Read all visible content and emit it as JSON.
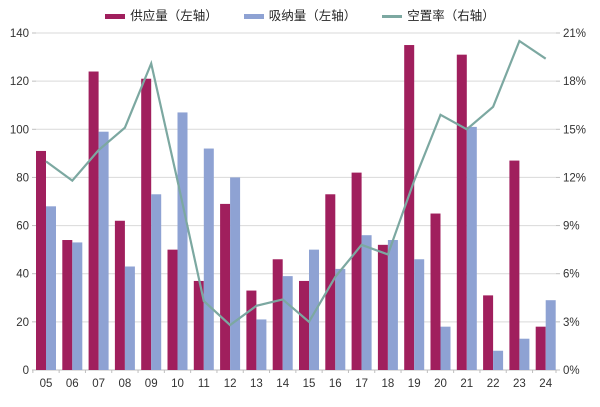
{
  "colors": {
    "supply_bar": "#A01F5D",
    "absorption_bar": "#8EA2D3",
    "vacancy_line": "#7CA8A1",
    "gridline": "#D9D9D9",
    "axis_line": "#BFBFBF",
    "tick_mark": "#BFBFBF",
    "text": "#333333",
    "background": "#FFFFFF"
  },
  "chart_data": {
    "type": "bar",
    "subtype": "grouped-bars-with-line-overlay",
    "title": "",
    "xlabel": "",
    "ylabel": "",
    "grid": true,
    "legend_position": "top-center",
    "categories": [
      "05",
      "06",
      "07",
      "08",
      "09",
      "10",
      "11",
      "12",
      "13",
      "14",
      "15",
      "16",
      "17",
      "18",
      "19",
      "20",
      "21",
      "22",
      "23",
      "24"
    ],
    "left_axis": {
      "min": 0,
      "max": 140,
      "step": 20,
      "tick_labels": [
        "0",
        "20",
        "40",
        "60",
        "80",
        "100",
        "120",
        "140"
      ]
    },
    "right_axis": {
      "min": 0,
      "max": 21,
      "step": 3,
      "tick_labels": [
        "0%",
        "3%",
        "6%",
        "9%",
        "12%",
        "15%",
        "18%",
        "21%"
      ]
    },
    "series": [
      {
        "name": "供应量（左轴）",
        "type": "bar",
        "axis": "left",
        "color_key": "supply_bar",
        "values": [
          91,
          54,
          124,
          62,
          121,
          50,
          37,
          69,
          33,
          46,
          37,
          73,
          82,
          52,
          135,
          65,
          131,
          31,
          87,
          18
        ]
      },
      {
        "name": "吸纳量（左轴）",
        "type": "bar",
        "axis": "left",
        "color_key": "absorption_bar",
        "values": [
          68,
          53,
          99,
          43,
          73,
          107,
          92,
          80,
          21,
          39,
          50,
          42,
          56,
          54,
          46,
          18,
          101,
          8,
          13,
          29
        ]
      },
      {
        "name": "空置率（右轴）",
        "type": "line",
        "axis": "right",
        "color_key": "vacancy_line",
        "values": [
          13.0,
          11.8,
          13.7,
          15.1,
          19.1,
          11.8,
          4.3,
          2.8,
          4.0,
          4.4,
          3.0,
          5.8,
          7.8,
          7.2,
          11.8,
          15.9,
          15.0,
          16.4,
          20.5,
          19.4
        ]
      }
    ]
  }
}
